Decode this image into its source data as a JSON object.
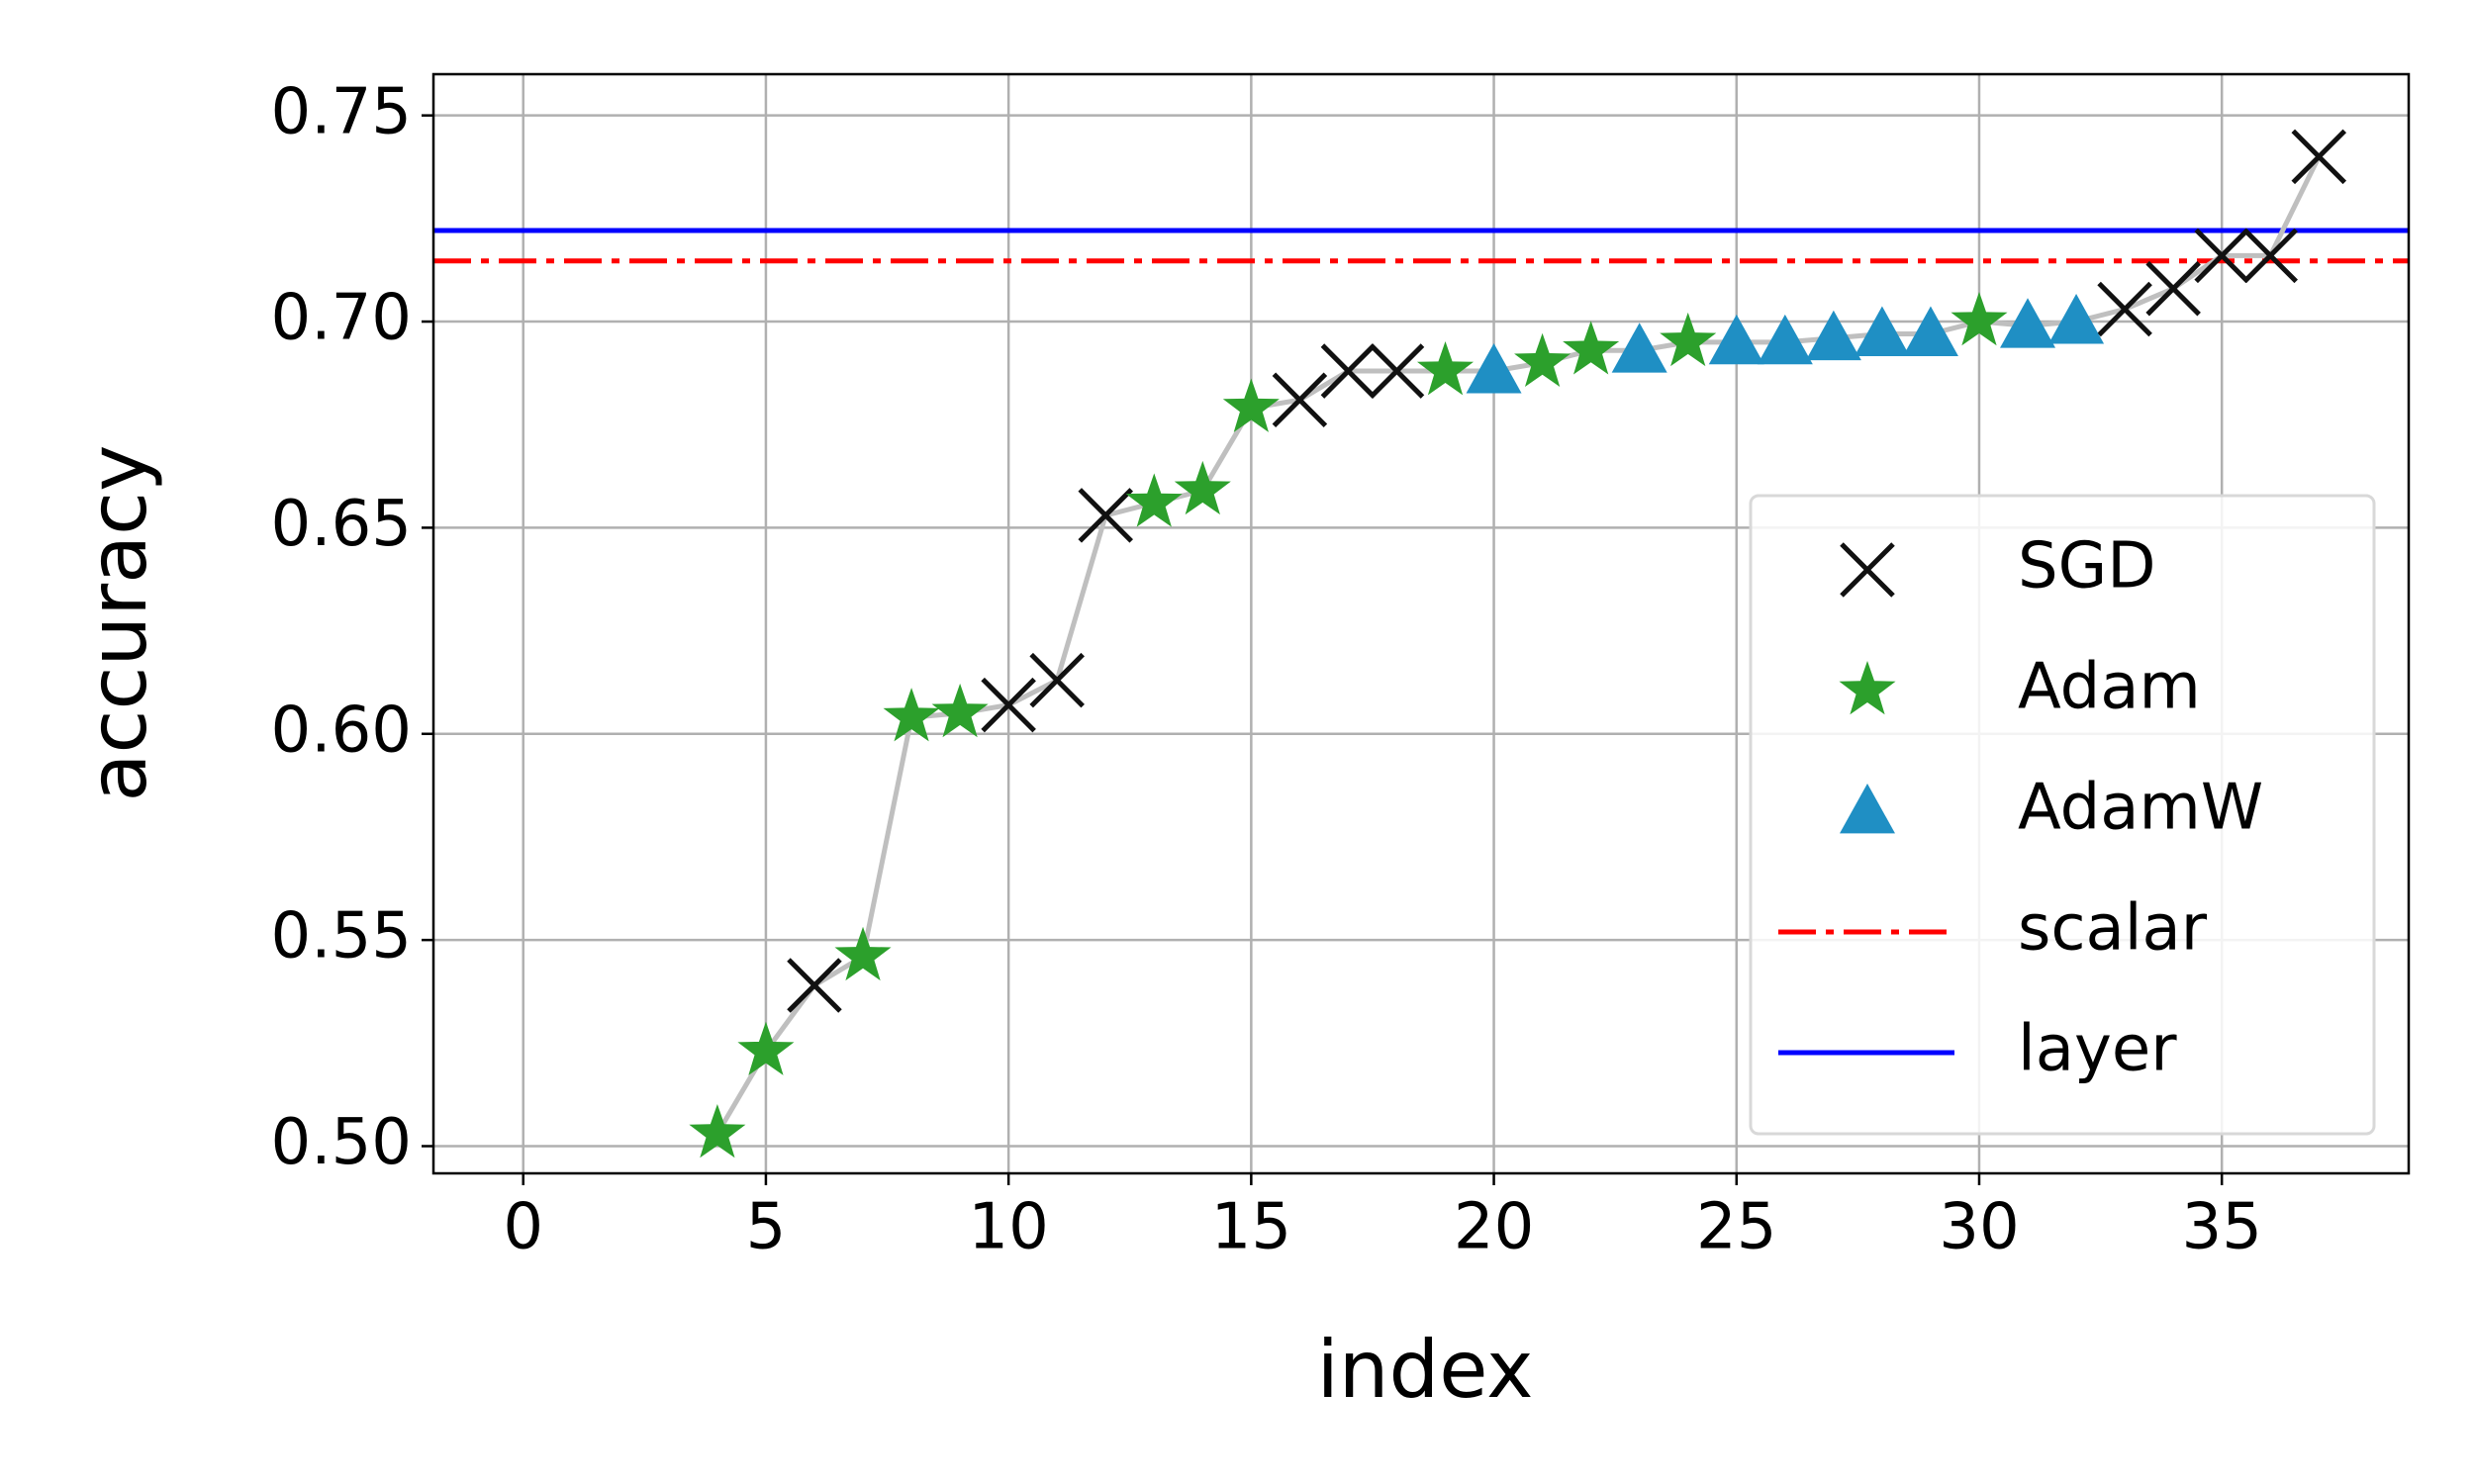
{
  "chart_data": {
    "type": "scatter",
    "x_label": "index",
    "y_label": "accuracy",
    "xlim": [
      -1.85,
      38.85
    ],
    "ylim": [
      0.4934,
      0.76
    ],
    "xticks": [
      0,
      5,
      10,
      15,
      20,
      25,
      30,
      35
    ],
    "yticks": [
      {
        "value": 0.5,
        "label": "0.50"
      },
      {
        "value": 0.55,
        "label": "0.55"
      },
      {
        "value": 0.6,
        "label": "0.60"
      },
      {
        "value": 0.65,
        "label": "0.65"
      },
      {
        "value": 0.7,
        "label": "0.70"
      },
      {
        "value": 0.75,
        "label": "0.75"
      }
    ],
    "grid": true,
    "legend": "lower right",
    "trend_color": "#bfbfbf",
    "series": [
      {
        "name": "SGD",
        "color": "#111111",
        "marker": "x",
        "x": [
          6,
          10,
          11,
          12,
          16,
          17,
          18,
          33,
          34,
          35,
          36,
          37
        ],
        "values": [
          0.539,
          0.607,
          0.613,
          0.653,
          0.681,
          0.688,
          0.688,
          0.703,
          0.708,
          0.716,
          0.716,
          0.74
        ]
      },
      {
        "name": "Adam",
        "color": "#2ca02c",
        "marker": "star",
        "x": [
          4,
          5,
          7,
          8,
          9,
          13,
          14,
          15,
          19,
          21,
          22,
          24,
          30
        ],
        "values": [
          0.503,
          0.523,
          0.546,
          0.604,
          0.605,
          0.656,
          0.659,
          0.679,
          0.688,
          0.69,
          0.693,
          0.695,
          0.7
        ]
      },
      {
        "name": "AdamW",
        "color": "#1f8fc4",
        "marker": "triangle",
        "x": [
          20,
          23,
          25,
          26,
          27,
          28,
          29,
          31,
          32
        ],
        "values": [
          0.688,
          0.693,
          0.695,
          0.695,
          0.696,
          0.697,
          0.697,
          0.699,
          0.7
        ]
      }
    ],
    "hlines": [
      {
        "name": "scalar",
        "color": "#ff0000",
        "style": "dashdot",
        "value": 0.7147
      },
      {
        "name": "layer",
        "color": "#0000ff",
        "style": "solid",
        "value": 0.7221
      }
    ]
  }
}
